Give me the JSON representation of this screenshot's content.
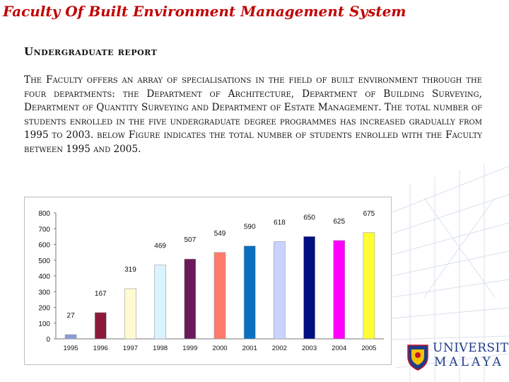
{
  "header": {
    "title": "Faculty Of Built Environment Management System"
  },
  "section": {
    "subtitle": "Undergraduate report",
    "body": "The Faculty offers an array of specialisations in the field of built environment through the four departments: the Department of Architecture, Department of Building Surveying, Department of Quantity Surveying and Department of Estate Management. The total number of students enrolled in the five undergraduate degree programmes has increased gradually from 1995 to 2003. below Figure indicates the total number of students enrolled with the Faculty between 1995 and 2005."
  },
  "logo": {
    "line1": "UNIVERSITI",
    "line2": "MALAYA",
    "icon": "university-crest-icon"
  },
  "chart_data": {
    "type": "bar",
    "categories": [
      "1995",
      "1996",
      "1997",
      "1998",
      "1999",
      "2000",
      "2001",
      "2002",
      "2003",
      "2004",
      "2005"
    ],
    "values": [
      27,
      167,
      319,
      469,
      507,
      549,
      590,
      618,
      650,
      625,
      675
    ],
    "colors": [
      "#8f9bd6",
      "#8b1a3a",
      "#fffad0",
      "#d9f3ff",
      "#6a1a5a",
      "#ff7a6a",
      "#0a6fbf",
      "#c9d3ff",
      "#000e80",
      "#ff00ff",
      "#ffff33"
    ],
    "ylim": [
      0,
      800
    ],
    "yticks": [
      0,
      100,
      200,
      300,
      400,
      500,
      600,
      700,
      800
    ],
    "grid": false,
    "legend": "none"
  }
}
